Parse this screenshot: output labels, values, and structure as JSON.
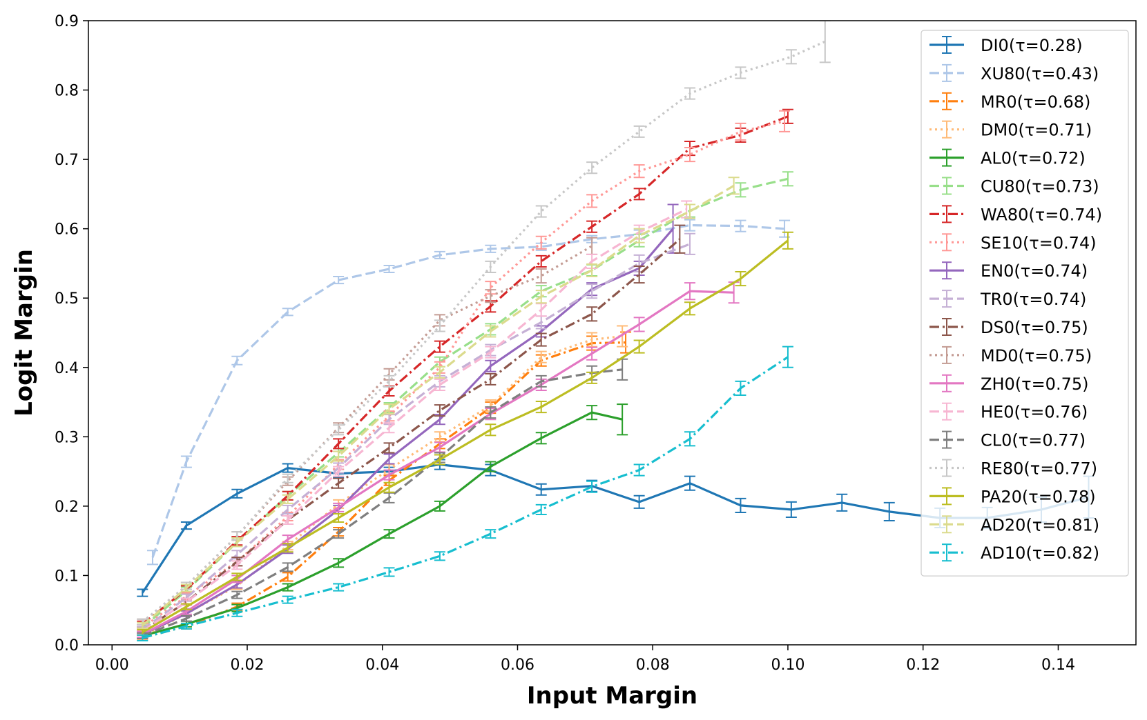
{
  "chart_data": {
    "type": "line",
    "xlabel": "Input Margin",
    "ylabel": "Logit Margin",
    "xlim": [
      -0.0035,
      0.1515
    ],
    "ylim": [
      0.0,
      0.9
    ],
    "xticks": [
      "0.00",
      "0.02",
      "0.04",
      "0.06",
      "0.08",
      "0.10",
      "0.12",
      "0.14"
    ],
    "xtick_values": [
      0.0,
      0.02,
      0.04,
      0.06,
      0.08,
      0.1,
      0.12,
      0.14
    ],
    "yticks": [
      "0.0",
      "0.1",
      "0.2",
      "0.3",
      "0.4",
      "0.5",
      "0.6",
      "0.7",
      "0.8",
      "0.9"
    ],
    "ytick_values": [
      0.0,
      0.1,
      0.2,
      0.3,
      0.4,
      0.5,
      0.6,
      0.7,
      0.8,
      0.9
    ],
    "grid": false,
    "legend_position": "upper-right",
    "series": [
      {
        "name": "DI0(τ=0.28)",
        "color": "#1f77b4",
        "dash": "solid",
        "x": [
          0.0045,
          0.011,
          0.0185,
          0.026,
          0.0335,
          0.041,
          0.0485,
          0.056,
          0.0635,
          0.071,
          0.078,
          0.0855,
          0.093,
          0.1005,
          0.108,
          0.115,
          0.1225,
          0.1295,
          0.1375,
          0.1445
        ],
        "y": [
          0.075,
          0.172,
          0.218,
          0.255,
          0.247,
          0.25,
          0.26,
          0.252,
          0.224,
          0.229,
          0.206,
          0.233,
          0.201,
          0.195,
          0.205,
          0.192,
          0.183,
          0.183,
          0.195,
          0.213
        ],
        "err": [
          0.005,
          0.005,
          0.006,
          0.006,
          0.006,
          0.006,
          0.007,
          0.008,
          0.008,
          0.008,
          0.009,
          0.01,
          0.01,
          0.011,
          0.012,
          0.013,
          0.014,
          0.015,
          0.018,
          0.03
        ]
      },
      {
        "name": "XU80(τ=0.43)",
        "color": "#aec7e8",
        "dash": "dashed",
        "x": [
          0.006,
          0.011,
          0.0185,
          0.026,
          0.0335,
          0.041,
          0.0485,
          0.056,
          0.0635,
          0.071,
          0.078,
          0.0855,
          0.093,
          0.0995
        ],
        "y": [
          0.126,
          0.264,
          0.41,
          0.48,
          0.526,
          0.542,
          0.562,
          0.571,
          0.574,
          0.585,
          0.592,
          0.605,
          0.604,
          0.6
        ],
        "err": [
          0.01,
          0.008,
          0.006,
          0.005,
          0.005,
          0.005,
          0.005,
          0.005,
          0.005,
          0.005,
          0.006,
          0.008,
          0.008,
          0.012
        ]
      },
      {
        "name": "MR0(τ=0.68)",
        "color": "#ff7f0e",
        "dash": "dashdot",
        "x": [
          0.0045,
          0.011,
          0.0185,
          0.026,
          0.0335,
          0.041,
          0.0485,
          0.056,
          0.0635,
          0.071,
          0.076
        ],
        "y": [
          0.01,
          0.027,
          0.055,
          0.098,
          0.163,
          0.237,
          0.29,
          0.342,
          0.41,
          0.435,
          0.436
        ],
        "err": [
          0.004,
          0.004,
          0.005,
          0.006,
          0.006,
          0.007,
          0.007,
          0.008,
          0.008,
          0.01,
          0.015
        ]
      },
      {
        "name": "DM0(τ=0.71)",
        "color": "#ffbb78",
        "dash": "dotted",
        "x": [
          0.0045,
          0.011,
          0.0185,
          0.026,
          0.0335,
          0.041,
          0.0485,
          0.056,
          0.0635,
          0.071,
          0.0755
        ],
        "y": [
          0.012,
          0.045,
          0.085,
          0.143,
          0.203,
          0.253,
          0.3,
          0.345,
          0.415,
          0.44,
          0.445
        ],
        "err": [
          0.004,
          0.004,
          0.005,
          0.006,
          0.006,
          0.007,
          0.007,
          0.008,
          0.008,
          0.01,
          0.015
        ]
      },
      {
        "name": "AL0(τ=0.72)",
        "color": "#2ca02c",
        "dash": "solid",
        "x": [
          0.0045,
          0.011,
          0.0185,
          0.026,
          0.0335,
          0.041,
          0.0485,
          0.056,
          0.0635,
          0.071,
          0.0755
        ],
        "y": [
          0.013,
          0.03,
          0.053,
          0.083,
          0.118,
          0.16,
          0.2,
          0.257,
          0.298,
          0.335,
          0.325
        ],
        "err": [
          0.004,
          0.004,
          0.005,
          0.005,
          0.006,
          0.006,
          0.007,
          0.007,
          0.008,
          0.01,
          0.022
        ]
      },
      {
        "name": "CU80(τ=0.73)",
        "color": "#98df8a",
        "dash": "dashed",
        "x": [
          0.0045,
          0.011,
          0.0185,
          0.026,
          0.0335,
          0.041,
          0.0485,
          0.056,
          0.0635,
          0.071,
          0.078,
          0.0855,
          0.093,
          0.1
        ],
        "y": [
          0.025,
          0.078,
          0.148,
          0.215,
          0.277,
          0.342,
          0.408,
          0.455,
          0.51,
          0.54,
          0.583,
          0.626,
          0.656,
          0.672
        ],
        "err": [
          0.004,
          0.005,
          0.006,
          0.006,
          0.006,
          0.007,
          0.007,
          0.008,
          0.008,
          0.008,
          0.009,
          0.009,
          0.01,
          0.01
        ]
      },
      {
        "name": "WA80(τ=0.74)",
        "color": "#d62728",
        "dash": "dashdot",
        "x": [
          0.0045,
          0.011,
          0.0185,
          0.026,
          0.0335,
          0.041,
          0.0485,
          0.056,
          0.0635,
          0.071,
          0.078,
          0.0855,
          0.093,
          0.1
        ],
        "y": [
          0.03,
          0.08,
          0.15,
          0.215,
          0.29,
          0.366,
          0.43,
          0.488,
          0.553,
          0.603,
          0.65,
          0.716,
          0.735,
          0.762
        ],
        "err": [
          0.004,
          0.005,
          0.006,
          0.006,
          0.007,
          0.007,
          0.008,
          0.008,
          0.008,
          0.008,
          0.008,
          0.01,
          0.01,
          0.01
        ]
      },
      {
        "name": "SE10(τ=0.74)",
        "color": "#ff9896",
        "dash": "dotted",
        "x": [
          0.0045,
          0.011,
          0.0185,
          0.026,
          0.0335,
          0.041,
          0.0485,
          0.056,
          0.0635,
          0.071,
          0.078,
          0.0855,
          0.093,
          0.0995
        ],
        "y": [
          0.025,
          0.07,
          0.12,
          0.185,
          0.26,
          0.33,
          0.4,
          0.515,
          0.58,
          0.64,
          0.683,
          0.707,
          0.74,
          0.755
        ],
        "err": [
          0.004,
          0.005,
          0.006,
          0.006,
          0.007,
          0.007,
          0.008,
          0.009,
          0.009,
          0.009,
          0.009,
          0.01,
          0.012,
          0.015
        ]
      },
      {
        "name": "EN0(τ=0.74)",
        "color": "#9467bd",
        "dash": "solid",
        "x": [
          0.0045,
          0.011,
          0.0185,
          0.026,
          0.0335,
          0.041,
          0.0485,
          0.056,
          0.0635,
          0.071,
          0.078,
          0.083
        ],
        "y": [
          0.015,
          0.045,
          0.087,
          0.138,
          0.195,
          0.268,
          0.325,
          0.402,
          0.452,
          0.513,
          0.543,
          0.6
        ],
        "err": [
          0.004,
          0.004,
          0.005,
          0.006,
          0.006,
          0.007,
          0.007,
          0.008,
          0.008,
          0.009,
          0.01,
          0.035
        ]
      },
      {
        "name": "TR0(τ=0.74)",
        "color": "#c5b0d5",
        "dash": "dashed",
        "x": [
          0.0045,
          0.011,
          0.0185,
          0.026,
          0.0335,
          0.041,
          0.0485,
          0.056,
          0.0635,
          0.071,
          0.078,
          0.0855
        ],
        "y": [
          0.022,
          0.068,
          0.13,
          0.195,
          0.255,
          0.325,
          0.38,
          0.425,
          0.465,
          0.51,
          0.55,
          0.578
        ],
        "err": [
          0.004,
          0.005,
          0.006,
          0.006,
          0.007,
          0.007,
          0.008,
          0.008,
          0.009,
          0.01,
          0.012,
          0.015
        ]
      },
      {
        "name": "DS0(τ=0.75)",
        "color": "#8c564b",
        "dash": "dashdot",
        "x": [
          0.0045,
          0.011,
          0.0185,
          0.026,
          0.0335,
          0.041,
          0.0485,
          0.056,
          0.0635,
          0.071,
          0.078,
          0.084
        ],
        "y": [
          0.02,
          0.062,
          0.12,
          0.18,
          0.233,
          0.284,
          0.338,
          0.383,
          0.44,
          0.477,
          0.534,
          0.585
        ],
        "err": [
          0.004,
          0.005,
          0.006,
          0.006,
          0.007,
          0.007,
          0.008,
          0.008,
          0.009,
          0.01,
          0.012,
          0.02
        ]
      },
      {
        "name": "MD0(τ=0.75)",
        "color": "#c49c94",
        "dash": "dotted",
        "x": [
          0.0045,
          0.011,
          0.0185,
          0.026,
          0.0335,
          0.041,
          0.0485,
          0.056,
          0.0635,
          0.071
        ],
        "y": [
          0.033,
          0.085,
          0.157,
          0.236,
          0.313,
          0.39,
          0.468,
          0.503,
          0.532,
          0.575
        ],
        "err": [
          0.004,
          0.005,
          0.006,
          0.006,
          0.007,
          0.008,
          0.008,
          0.009,
          0.01,
          0.012
        ]
      },
      {
        "name": "ZH0(τ=0.75)",
        "color": "#e377c2",
        "dash": "solid",
        "x": [
          0.0045,
          0.011,
          0.0185,
          0.026,
          0.0335,
          0.041,
          0.0485,
          0.056,
          0.0635,
          0.071,
          0.078,
          0.0855,
          0.092
        ],
        "y": [
          0.015,
          0.048,
          0.095,
          0.152,
          0.198,
          0.245,
          0.285,
          0.333,
          0.375,
          0.42,
          0.462,
          0.51,
          0.508
        ],
        "err": [
          0.004,
          0.004,
          0.005,
          0.006,
          0.006,
          0.007,
          0.007,
          0.008,
          0.008,
          0.009,
          0.01,
          0.012,
          0.015
        ]
      },
      {
        "name": "HE0(τ=0.76)",
        "color": "#f7b6d2",
        "dash": "dashed",
        "x": [
          0.0045,
          0.011,
          0.0185,
          0.026,
          0.0335,
          0.041,
          0.0485,
          0.056,
          0.0635,
          0.071,
          0.078,
          0.085
        ],
        "y": [
          0.02,
          0.062,
          0.115,
          0.18,
          0.25,
          0.313,
          0.375,
          0.422,
          0.483,
          0.553,
          0.595,
          0.628
        ],
        "err": [
          0.004,
          0.005,
          0.006,
          0.006,
          0.007,
          0.007,
          0.008,
          0.008,
          0.009,
          0.01,
          0.01,
          0.012
        ]
      },
      {
        "name": "CL0(τ=0.77)",
        "color": "#7f7f7f",
        "dash": "dashed",
        "x": [
          0.0045,
          0.011,
          0.0185,
          0.026,
          0.0335,
          0.041,
          0.0485,
          0.056,
          0.0635,
          0.071,
          0.0755
        ],
        "y": [
          0.013,
          0.038,
          0.072,
          0.112,
          0.16,
          0.212,
          0.27,
          0.335,
          0.38,
          0.392,
          0.397
        ],
        "err": [
          0.004,
          0.004,
          0.005,
          0.006,
          0.006,
          0.007,
          0.007,
          0.008,
          0.008,
          0.01,
          0.015
        ]
      },
      {
        "name": "RE80(τ=0.77)",
        "color": "#c7c7c7",
        "dash": "dotted",
        "x": [
          0.0045,
          0.011,
          0.0185,
          0.026,
          0.0335,
          0.041,
          0.0485,
          0.056,
          0.0635,
          0.071,
          0.078,
          0.0855,
          0.093,
          0.1005,
          0.1055
        ],
        "y": [
          0.033,
          0.085,
          0.157,
          0.24,
          0.31,
          0.38,
          0.46,
          0.545,
          0.625,
          0.688,
          0.74,
          0.795,
          0.825,
          0.848,
          0.87
        ],
        "err": [
          0.004,
          0.005,
          0.006,
          0.006,
          0.007,
          0.008,
          0.008,
          0.008,
          0.008,
          0.008,
          0.008,
          0.008,
          0.008,
          0.01,
          0.03
        ]
      },
      {
        "name": "PA20(τ=0.78)",
        "color": "#bcbd22",
        "dash": "solid",
        "x": [
          0.0045,
          0.011,
          0.0185,
          0.026,
          0.0335,
          0.041,
          0.0485,
          0.056,
          0.0635,
          0.071,
          0.078,
          0.0855,
          0.093,
          0.1
        ],
        "y": [
          0.018,
          0.055,
          0.098,
          0.14,
          0.183,
          0.227,
          0.267,
          0.31,
          0.343,
          0.385,
          0.43,
          0.485,
          0.528,
          0.583
        ],
        "err": [
          0.004,
          0.004,
          0.005,
          0.006,
          0.006,
          0.007,
          0.007,
          0.008,
          0.008,
          0.008,
          0.009,
          0.009,
          0.01,
          0.012
        ]
      },
      {
        "name": "AD20(τ=0.81)",
        "color": "#dbdb8d",
        "dash": "dashed",
        "x": [
          0.0045,
          0.011,
          0.0185,
          0.026,
          0.0335,
          0.041,
          0.0485,
          0.056,
          0.0635,
          0.071,
          0.078,
          0.0855,
          0.092
        ],
        "y": [
          0.028,
          0.082,
          0.148,
          0.21,
          0.272,
          0.34,
          0.393,
          0.452,
          0.502,
          0.54,
          0.59,
          0.625,
          0.662
        ],
        "err": [
          0.004,
          0.005,
          0.006,
          0.006,
          0.007,
          0.007,
          0.008,
          0.008,
          0.009,
          0.009,
          0.01,
          0.01,
          0.012
        ]
      },
      {
        "name": "AD10(τ=0.82)",
        "color": "#17becf",
        "dash": "dashdot",
        "x": [
          0.0045,
          0.011,
          0.0185,
          0.026,
          0.0335,
          0.041,
          0.0485,
          0.056,
          0.0635,
          0.071,
          0.078,
          0.0855,
          0.093,
          0.1
        ],
        "y": [
          0.01,
          0.027,
          0.046,
          0.065,
          0.083,
          0.105,
          0.128,
          0.16,
          0.195,
          0.228,
          0.252,
          0.297,
          0.37,
          0.415
        ],
        "err": [
          0.004,
          0.004,
          0.005,
          0.005,
          0.005,
          0.006,
          0.006,
          0.006,
          0.007,
          0.008,
          0.008,
          0.01,
          0.01,
          0.015
        ]
      }
    ]
  }
}
